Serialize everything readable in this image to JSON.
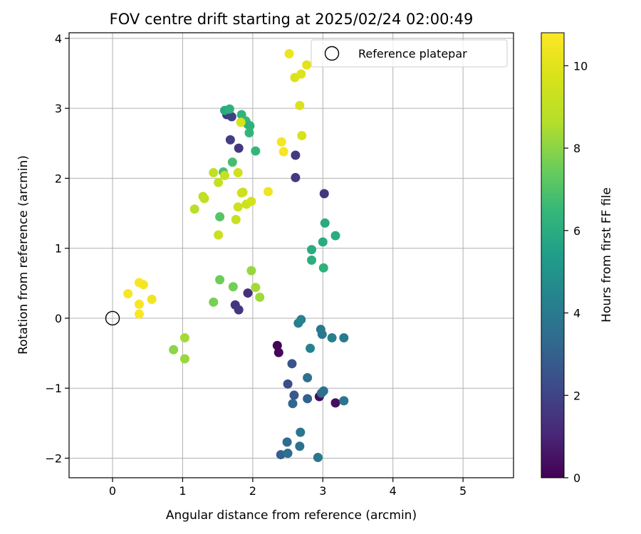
{
  "chart_data": {
    "type": "scatter",
    "title": "FOV centre drift starting at 2025/02/24 02:00:49",
    "xlabel": "Angular distance from reference (arcmin)",
    "ylabel": "Rotation from reference (arcmin)",
    "xlim": [
      -0.62,
      5.72
    ],
    "ylim": [
      -2.28,
      4.08
    ],
    "xticks": [
      0,
      1,
      2,
      3,
      4,
      5
    ],
    "xtick_labels": [
      "0",
      "1",
      "2",
      "3",
      "4",
      "5"
    ],
    "yticks": [
      -2,
      -1,
      0,
      1,
      2,
      3,
      4
    ],
    "ytick_labels": [
      "−2",
      "−1",
      "0",
      "1",
      "2",
      "3",
      "4"
    ],
    "grid": true,
    "legend": {
      "placement": "top-right",
      "entries": [
        "Reference platepar"
      ]
    },
    "reference_point": {
      "x": 0,
      "y": 0
    },
    "colorbar": {
      "label": "Hours from first FF file",
      "range": [
        0,
        10.8
      ],
      "ticks": [
        0,
        2,
        4,
        6,
        8,
        10
      ],
      "tick_labels": [
        "0",
        "2",
        "4",
        "6",
        "8",
        "10"
      ],
      "colormap": "viridis"
    },
    "points": [
      {
        "x": 2.35,
        "y": -0.39,
        "c": 0.1
      },
      {
        "x": 2.37,
        "y": -0.49,
        "c": 0.15
      },
      {
        "x": 2.95,
        "y": -1.12,
        "c": 0.3
      },
      {
        "x": 3.18,
        "y": -1.21,
        "c": 0.4
      },
      {
        "x": 1.93,
        "y": 0.36,
        "c": 1.3
      },
      {
        "x": 1.75,
        "y": 0.19,
        "c": 1.5
      },
      {
        "x": 1.8,
        "y": 0.12,
        "c": 1.6
      },
      {
        "x": 3.02,
        "y": 1.78,
        "c": 1.5
      },
      {
        "x": 2.61,
        "y": 2.01,
        "c": 1.7
      },
      {
        "x": 2.61,
        "y": 2.33,
        "c": 1.7
      },
      {
        "x": 1.8,
        "y": 2.43,
        "c": 1.6
      },
      {
        "x": 1.68,
        "y": 2.55,
        "c": 1.8
      },
      {
        "x": 1.63,
        "y": 2.91,
        "c": 1.6
      },
      {
        "x": 1.7,
        "y": 2.88,
        "c": 1.9
      },
      {
        "x": 2.5,
        "y": -0.94,
        "c": 2.3
      },
      {
        "x": 2.56,
        "y": -0.65,
        "c": 2.5
      },
      {
        "x": 2.59,
        "y": -1.1,
        "c": 2.7
      },
      {
        "x": 2.78,
        "y": -1.15,
        "c": 3.0
      },
      {
        "x": 2.57,
        "y": -1.22,
        "c": 3.3
      },
      {
        "x": 2.78,
        "y": -0.85,
        "c": 3.6
      },
      {
        "x": 2.98,
        "y": -1.07,
        "c": 3.5
      },
      {
        "x": 3.01,
        "y": -1.04,
        "c": 3.6
      },
      {
        "x": 2.65,
        "y": -0.07,
        "c": 4.2
      },
      {
        "x": 2.69,
        "y": -0.02,
        "c": 4.3
      },
      {
        "x": 2.97,
        "y": -0.16,
        "c": 3.9
      },
      {
        "x": 2.99,
        "y": -0.23,
        "c": 3.9
      },
      {
        "x": 3.13,
        "y": -0.28,
        "c": 4.2
      },
      {
        "x": 3.3,
        "y": -0.28,
        "c": 4.0
      },
      {
        "x": 2.82,
        "y": -0.43,
        "c": 4.3
      },
      {
        "x": 3.3,
        "y": -1.18,
        "c": 3.8
      },
      {
        "x": 2.4,
        "y": -1.95,
        "c": 3.0
      },
      {
        "x": 2.49,
        "y": -1.77,
        "c": 3.4
      },
      {
        "x": 2.5,
        "y": -1.93,
        "c": 3.5
      },
      {
        "x": 2.67,
        "y": -1.83,
        "c": 3.6
      },
      {
        "x": 2.68,
        "y": -1.63,
        "c": 3.8
      },
      {
        "x": 2.93,
        "y": -1.99,
        "c": 3.9
      },
      {
        "x": 2.84,
        "y": 0.98,
        "c": 6.0
      },
      {
        "x": 2.84,
        "y": 0.83,
        "c": 6.1
      },
      {
        "x": 3.01,
        "y": 0.72,
        "c": 6.2
      },
      {
        "x": 3.0,
        "y": 1.09,
        "c": 6.0
      },
      {
        "x": 3.03,
        "y": 1.36,
        "c": 5.9
      },
      {
        "x": 3.18,
        "y": 1.18,
        "c": 6.0
      },
      {
        "x": 1.6,
        "y": 2.97,
        "c": 5.9
      },
      {
        "x": 1.67,
        "y": 2.99,
        "c": 6.2
      },
      {
        "x": 1.84,
        "y": 2.91,
        "c": 6.3
      },
      {
        "x": 1.9,
        "y": 2.82,
        "c": 6.5
      },
      {
        "x": 1.93,
        "y": 2.77,
        "c": 6.3
      },
      {
        "x": 1.96,
        "y": 2.75,
        "c": 6.2
      },
      {
        "x": 1.95,
        "y": 2.65,
        "c": 6.4
      },
      {
        "x": 2.04,
        "y": 2.39,
        "c": 6.4
      },
      {
        "x": 1.71,
        "y": 2.23,
        "c": 6.8
      },
      {
        "x": 1.58,
        "y": 2.09,
        "c": 6.9
      },
      {
        "x": 1.53,
        "y": 1.45,
        "c": 7.1
      },
      {
        "x": 1.53,
        "y": 0.55,
        "c": 7.5
      },
      {
        "x": 1.72,
        "y": 0.45,
        "c": 7.6
      },
      {
        "x": 1.44,
        "y": 0.23,
        "c": 7.7
      },
      {
        "x": 1.98,
        "y": 0.68,
        "c": 8.2
      },
      {
        "x": 2.04,
        "y": 0.44,
        "c": 8.4
      },
      {
        "x": 2.1,
        "y": 0.3,
        "c": 8.3
      },
      {
        "x": 0.87,
        "y": -0.45,
        "c": 8.0
      },
      {
        "x": 1.03,
        "y": -0.28,
        "c": 8.4
      },
      {
        "x": 1.03,
        "y": -0.58,
        "c": 8.2
      },
      {
        "x": 1.17,
        "y": 1.56,
        "c": 8.8
      },
      {
        "x": 1.29,
        "y": 1.74,
        "c": 8.9
      },
      {
        "x": 1.31,
        "y": 1.71,
        "c": 9.0
      },
      {
        "x": 1.44,
        "y": 2.08,
        "c": 9.0
      },
      {
        "x": 1.51,
        "y": 1.94,
        "c": 9.1
      },
      {
        "x": 1.6,
        "y": 2.04,
        "c": 9.2
      },
      {
        "x": 1.51,
        "y": 1.19,
        "c": 9.3
      },
      {
        "x": 1.76,
        "y": 1.41,
        "c": 9.2
      },
      {
        "x": 1.79,
        "y": 1.59,
        "c": 9.4
      },
      {
        "x": 1.79,
        "y": 2.08,
        "c": 9.5
      },
      {
        "x": 1.84,
        "y": 1.79,
        "c": 9.6
      },
      {
        "x": 1.86,
        "y": 1.8,
        "c": 9.3
      },
      {
        "x": 1.91,
        "y": 1.63,
        "c": 9.4
      },
      {
        "x": 1.98,
        "y": 1.67,
        "c": 9.6
      },
      {
        "x": 1.83,
        "y": 2.8,
        "c": 9.7
      },
      {
        "x": 2.6,
        "y": 3.44,
        "c": 9.8
      },
      {
        "x": 2.67,
        "y": 3.04,
        "c": 9.8
      },
      {
        "x": 2.69,
        "y": 3.49,
        "c": 9.9
      },
      {
        "x": 2.7,
        "y": 2.61,
        "c": 9.7
      },
      {
        "x": 2.77,
        "y": 3.62,
        "c": 10.0
      },
      {
        "x": 2.52,
        "y": 3.78,
        "c": 10.3
      },
      {
        "x": 2.41,
        "y": 2.52,
        "c": 10.5
      },
      {
        "x": 2.44,
        "y": 2.38,
        "c": 10.6
      },
      {
        "x": 2.22,
        "y": 1.81,
        "c": 10.4
      },
      {
        "x": 0.22,
        "y": 0.35,
        "c": 10.6
      },
      {
        "x": 0.38,
        "y": 0.51,
        "c": 10.7
      },
      {
        "x": 0.44,
        "y": 0.48,
        "c": 10.5
      },
      {
        "x": 0.56,
        "y": 0.27,
        "c": 10.4
      },
      {
        "x": 0.38,
        "y": 0.2,
        "c": 10.6
      },
      {
        "x": 0.38,
        "y": 0.06,
        "c": 10.7
      }
    ]
  }
}
